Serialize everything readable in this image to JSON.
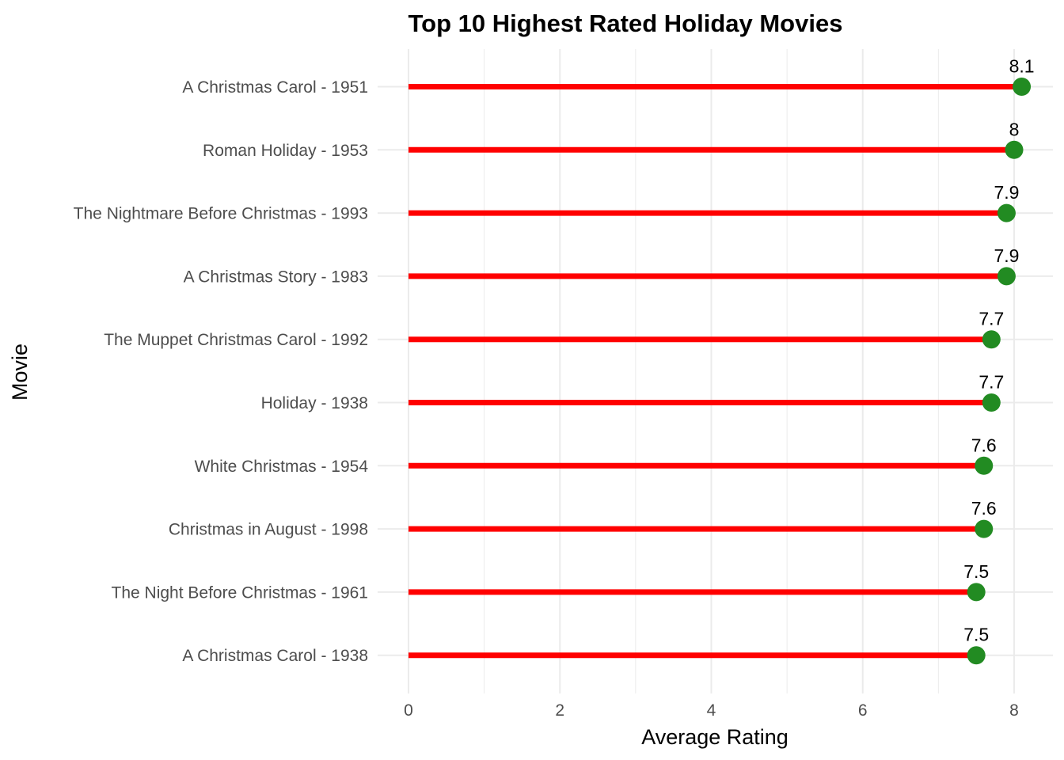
{
  "chart_data": {
    "type": "lollipop",
    "title": "Top 10 Highest Rated Holiday Movies",
    "xlabel": "Average Rating",
    "ylabel": "Movie",
    "xlim": [
      0,
      8.1
    ],
    "x_ticks": [
      "0",
      "2",
      "4",
      "6",
      "8"
    ],
    "x_tick_values": [
      0,
      2,
      4,
      6,
      8
    ],
    "grid": true,
    "colors": {
      "stem": "#ff0000",
      "point": "#228b22",
      "grid": "#ebebeb"
    },
    "categories": [
      "A Christmas Carol - 1951",
      "Roman Holiday - 1953",
      "The Nightmare Before Christmas - 1993",
      "A Christmas Story - 1983",
      "The Muppet Christmas Carol - 1992",
      "Holiday - 1938",
      "White Christmas - 1954",
      "Christmas in August - 1998",
      "The Night Before Christmas - 1961",
      "A Christmas Carol - 1938"
    ],
    "values": [
      8.1,
      8.0,
      7.9,
      7.9,
      7.7,
      7.7,
      7.6,
      7.6,
      7.5,
      7.5
    ],
    "value_labels": [
      "8.1",
      "8",
      "7.9",
      "7.9",
      "7.7",
      "7.7",
      "7.6",
      "7.6",
      "7.5",
      "7.5"
    ]
  }
}
